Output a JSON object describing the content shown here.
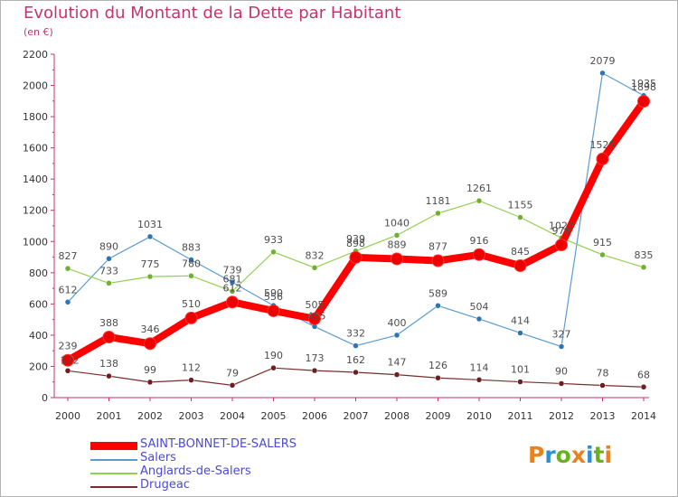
{
  "page": {
    "title": "Evolution du Montant de la Dette par Habitant",
    "subtitle": "(en €)"
  },
  "logo": {
    "text": "Proxiti",
    "colors": [
      "#e8821e",
      "#2f8fd0",
      "#6ab023",
      "#e8821e",
      "#2f8fd0",
      "#6ab023",
      "#e8821e"
    ]
  },
  "chart_data": {
    "type": "line",
    "x": [
      "2000",
      "2001",
      "2002",
      "2003",
      "2004",
      "2005",
      "2006",
      "2007",
      "2008",
      "2009",
      "2010",
      "2011",
      "2012",
      "2013",
      "2014"
    ],
    "ylim": [
      0,
      2200
    ],
    "yticks": [
      "0",
      "200",
      "400",
      "600",
      "800",
      "1000",
      "1200",
      "1400",
      "1600",
      "1800",
      "2000",
      "2200"
    ],
    "grid": false,
    "legend_position": "bottom-left",
    "series": [
      {
        "name": "Salers",
        "color": "#5b9bd5",
        "marker": "#2e75b6",
        "values": [
          612,
          890,
          1031,
          883,
          739,
          590,
          455,
          332,
          400,
          589,
          504,
          414,
          327,
          2079,
          1935
        ]
      },
      {
        "name": "Anglards-de-Salers",
        "color": "#92d050",
        "marker": "#70b030",
        "values": [
          827,
          733,
          775,
          780,
          681,
          933,
          832,
          939,
          1040,
          1181,
          1261,
          1155,
          1023,
          915,
          835
        ]
      },
      {
        "name": "Drugeac",
        "color": "#7b2c2c",
        "marker": "#6b1f1f",
        "values": [
          172,
          138,
          99,
          112,
          79,
          190,
          173,
          162,
          147,
          126,
          114,
          101,
          90,
          78,
          68
        ]
      },
      {
        "name": "SAINT-BONNET-DE-SALERS",
        "color": "#ff0000",
        "marker": "#ee0000",
        "values": [
          239,
          388,
          346,
          510,
          612,
          556,
          505,
          898,
          889,
          877,
          916,
          845,
          978,
          1529,
          1898
        ]
      }
    ],
    "point_labels": {
      "Salers": [
        "612",
        "890",
        "1031",
        "883",
        "739",
        "590",
        "",
        "332",
        "400",
        "589",
        "504",
        "414",
        "327",
        "2079",
        "1935"
      ],
      "Anglards-de-Salers": [
        "827",
        "733",
        "775",
        "780",
        "681",
        "933",
        "832",
        "939",
        "1040",
        "1181",
        "1261",
        "1155",
        "1023",
        "915",
        "835"
      ],
      "Drugeac": [
        "",
        "138",
        "99",
        "112",
        "79",
        "190",
        "173",
        "162",
        "147",
        "126",
        "114",
        "101",
        "90",
        "78",
        "68"
      ],
      "SAINT-BONNET-DE-SALERS": [
        "239",
        "388",
        "346",
        "510",
        "612",
        "556",
        "505",
        "898",
        "889",
        "877",
        "916",
        "845",
        "978",
        "1529",
        "1898"
      ]
    },
    "extra_labels": [
      "172",
      "455"
    ]
  },
  "legend": [
    {
      "label": "SAINT-BONNET-DE-SALERS",
      "color": "#ff0000",
      "thick": true
    },
    {
      "label": "Salers",
      "color": "#5b9bd5",
      "thick": false
    },
    {
      "label": "Anglards-de-Salers",
      "color": "#92d050",
      "thick": false
    },
    {
      "label": "Drugeac",
      "color": "#7b2c2c",
      "thick": false
    }
  ]
}
